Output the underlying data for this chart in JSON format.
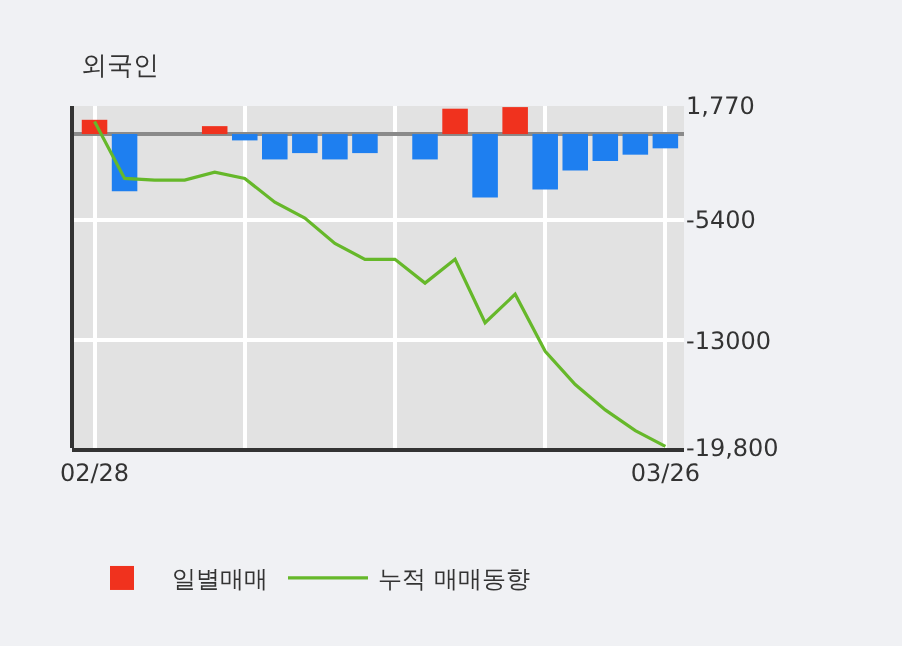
{
  "chart_data": {
    "type": "bar",
    "title": "외국인",
    "categories": [
      "02/28",
      null,
      null,
      null,
      null,
      null,
      null,
      null,
      null,
      null,
      null,
      null,
      null,
      null,
      null,
      null,
      null,
      null,
      null,
      "03/26"
    ],
    "series": [
      {
        "name": "일별매매",
        "values": [
          900,
          -3600,
          null,
          null,
          500,
          -400,
          -1600,
          -1200,
          -1600,
          -1200,
          null,
          -1600,
          1600,
          -4000,
          1700,
          -3500,
          -2300,
          -1700,
          -1300,
          -900
        ],
        "colors": [
          "#f0321e",
          "#1e7ff0",
          null,
          null,
          "#f0321e",
          "#1e7ff0",
          "#1e7ff0",
          "#1e7ff0",
          "#1e7ff0",
          "#1e7ff0",
          null,
          "#1e7ff0",
          "#f0321e",
          "#1e7ff0",
          "#f0321e",
          "#1e7ff0",
          "#1e7ff0",
          "#1e7ff0",
          "#1e7ff0",
          "#1e7ff0"
        ]
      },
      {
        "name": "누적 매매동향",
        "type": "line",
        "color": "#66b82a",
        "values": [
          800,
          -2800,
          -2900,
          -2900,
          -2400,
          -2800,
          -4300,
          -5300,
          -6900,
          -7900,
          -7900,
          -9400,
          -7900,
          -11900,
          -10100,
          -13700,
          -15800,
          -17400,
          -18700,
          -19700
        ]
      }
    ],
    "ylim": [
      -19800,
      1770
    ],
    "yticks": [
      {
        "value": 1770,
        "label": "1,770"
      },
      -5400,
      -13000,
      {
        "value": -19800,
        "label": "-19,800"
      }
    ],
    "grid": true,
    "legend": "bottom"
  }
}
